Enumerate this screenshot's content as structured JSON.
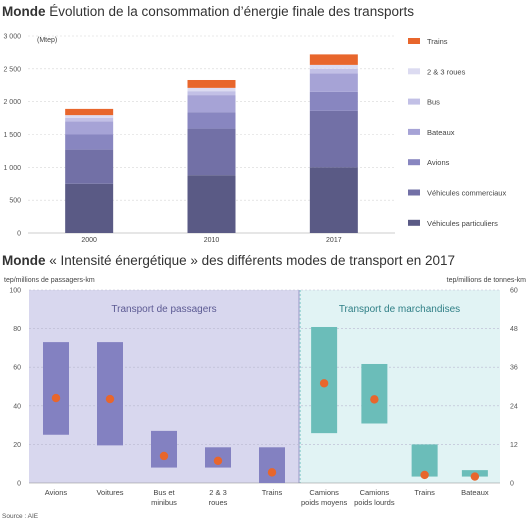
{
  "chart_data": [
    {
      "type": "bar",
      "stacked": true,
      "title_bold": "Monde",
      "title_rest": " Évolution de la consommation d’énergie finale des transports",
      "unit": "(Mtep)",
      "categories": [
        "2000",
        "2010",
        "2017"
      ],
      "ylim": [
        0,
        3000
      ],
      "yticks": [
        "0",
        "500",
        "1 000",
        "1 500",
        "2 000",
        "2 500",
        "3 000"
      ],
      "ytick_values": [
        0,
        500,
        1000,
        1500,
        2000,
        2500,
        3000
      ],
      "series": [
        {
          "name": "Véhicules particuliers",
          "color": "#5a5a85",
          "values": [
            750,
            880,
            1000
          ]
        },
        {
          "name": "Véhicules commerciaux",
          "color": "#7270a6",
          "values": [
            520,
            710,
            860
          ]
        },
        {
          "name": "Avions",
          "color": "#8886c0",
          "values": [
            230,
            250,
            290
          ]
        },
        {
          "name": "Bateaux",
          "color": "#a6a3d6",
          "values": [
            200,
            260,
            280
          ]
        },
        {
          "name": "Bus",
          "color": "#c2c0e6",
          "values": [
            55,
            60,
            70
          ]
        },
        {
          "name": "2 & 3 roues",
          "color": "#dcdbf1",
          "values": [
            40,
            50,
            60
          ]
        },
        {
          "name": "Trains",
          "color": "#e8662c",
          "values": [
            95,
            120,
            160
          ]
        }
      ]
    },
    {
      "type": "range",
      "title_bold": "Monde",
      "title_rest": " « Intensité énergétique » des différents modes de transport en 2017",
      "ylabel_left": "tep/millions de passagers-km",
      "ylabel_right": "tep/millions de tonnes-km",
      "yticks_left": [
        "0",
        "20",
        "40",
        "60",
        "80",
        "100"
      ],
      "ytick_values_left": [
        0,
        20,
        40,
        60,
        80,
        100
      ],
      "yticks_right": [
        "0",
        "12",
        "24",
        "36",
        "48",
        "60"
      ],
      "ytick_values_right": [
        0,
        12,
        24,
        36,
        48,
        60
      ],
      "ylim_left": [
        0,
        100
      ],
      "ylim_right": [
        0,
        60
      ],
      "panels": [
        {
          "label": "Transport de passagers",
          "axis": "left",
          "color": "#8381c1",
          "point_color": "#e8662c",
          "items": [
            {
              "label": [
                "Avions"
              ],
              "min": 25,
              "max": 73,
              "point": 44
            },
            {
              "label": [
                "Voitures"
              ],
              "min": 19.5,
              "max": 73,
              "point": 43.5
            },
            {
              "label": [
                "Bus et",
                "minibus"
              ],
              "min": 8,
              "max": 27,
              "point": 14
            },
            {
              "label": [
                "2 & 3",
                "roues"
              ],
              "min": 8,
              "max": 18.5,
              "point": 11.5
            },
            {
              "label": [
                "Trains"
              ],
              "min": 0,
              "max": 18.5,
              "point": 5.5
            }
          ]
        },
        {
          "label": "Transport de marchandises",
          "axis": "right",
          "color": "#6bbdb9",
          "point_color": "#e8662c",
          "items": [
            {
              "label": [
                "Camions",
                "poids moyens"
              ],
              "min": 15.5,
              "max": 48.5,
              "point": 31
            },
            {
              "label": [
                "Camions",
                "poids lourds"
              ],
              "min": 18.5,
              "max": 37,
              "point": 26
            },
            {
              "label": [
                "Trains"
              ],
              "min": 2,
              "max": 12,
              "point": 2.5
            },
            {
              "label": [
                "Bateaux"
              ],
              "min": 2,
              "max": 4,
              "point": 2
            }
          ]
        }
      ],
      "source": "Source : AIE"
    }
  ]
}
